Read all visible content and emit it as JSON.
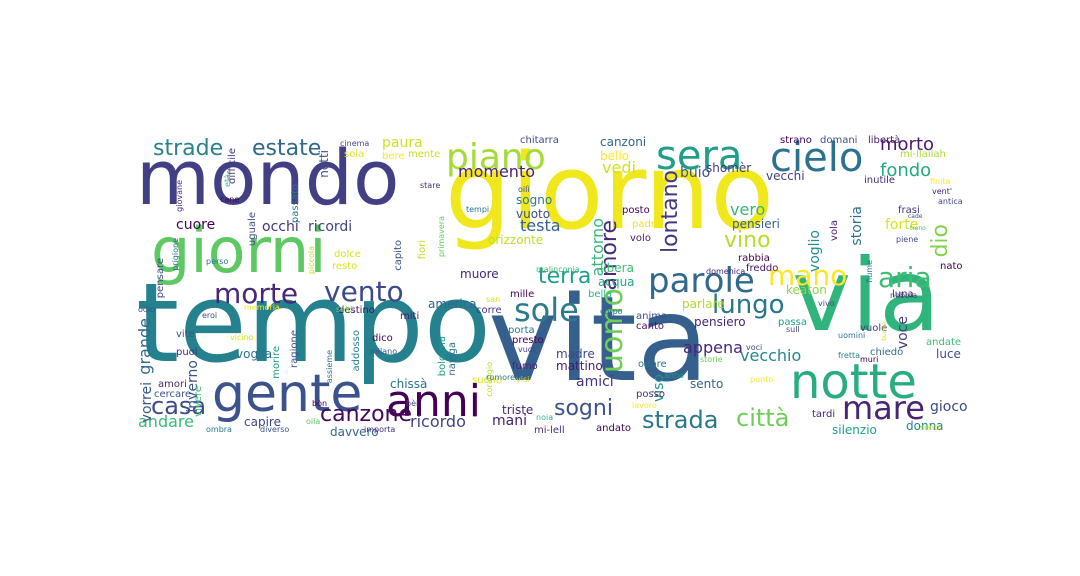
{
  "words": [
    {
      "text": "giorno",
      "color": "#f0e81c"
    },
    {
      "text": "tempo",
      "color": "#26818e"
    },
    {
      "text": "vita",
      "color": "#355f8d"
    },
    {
      "text": "via",
      "color": "#2fb47c"
    },
    {
      "text": "mondo",
      "color": "#423f85"
    },
    {
      "text": "giorni",
      "color": "#5ec962"
    },
    {
      "text": "notte",
      "color": "#27ad81"
    },
    {
      "text": "gente",
      "color": "#3b528b"
    },
    {
      "text": "anni",
      "color": "#440154"
    },
    {
      "text": "sera",
      "color": "#1f9e89"
    },
    {
      "text": "cielo",
      "color": "#2c728e"
    },
    {
      "text": "piano",
      "color": "#a5db36"
    },
    {
      "text": "parole",
      "color": "#31688e"
    },
    {
      "text": "mare",
      "color": "#482475"
    },
    {
      "text": "morte",
      "color": "#482878"
    },
    {
      "text": "vento",
      "color": "#3e4989"
    },
    {
      "text": "sole",
      "color": "#287c8e"
    },
    {
      "text": "uomo",
      "color": "#6ece58"
    },
    {
      "text": "mano",
      "color": "#fde725"
    },
    {
      "text": "aria",
      "color": "#3dbc74"
    },
    {
      "text": "lungo",
      "color": "#2a768e"
    },
    {
      "text": "strade",
      "color": "#26828e"
    },
    {
      "text": "estate",
      "color": "#30688e"
    },
    {
      "text": "casa",
      "color": "#3e4a89"
    },
    {
      "text": "canzone",
      "color": "#46085c"
    },
    {
      "text": "sogni",
      "color": "#3b528b"
    },
    {
      "text": "strada",
      "color": "#2a788e"
    },
    {
      "text": "città",
      "color": "#6ece58"
    },
    {
      "text": "amore",
      "color": "#472d7b"
    },
    {
      "text": "terra",
      "color": "#1f9e89"
    },
    {
      "text": "vino",
      "color": "#b5de2b"
    },
    {
      "text": "lontano",
      "color": "#453781"
    },
    {
      "text": "dio",
      "color": "#84d44b"
    },
    {
      "text": "morto",
      "color": "#481a6c"
    },
    {
      "text": "fondo",
      "color": "#22a884"
    },
    {
      "text": "grande",
      "color": "#31688e"
    },
    {
      "text": "cuore",
      "color": "#440154"
    },
    {
      "text": "occhi",
      "color": "#46337e"
    },
    {
      "text": "ricordi",
      "color": "#3f4788"
    },
    {
      "text": "momento",
      "color": "#482173"
    },
    {
      "text": "paura",
      "color": "#cde11d"
    },
    {
      "text": "vedi",
      "color": "#d2e21b"
    },
    {
      "text": "testa",
      "color": "#34618d"
    },
    {
      "text": "attorno",
      "color": "#35b779"
    },
    {
      "text": "vero",
      "color": "#35b779"
    },
    {
      "text": "storia",
      "color": "#2d708e"
    },
    {
      "text": "voglio",
      "color": "#20928c"
    },
    {
      "text": "forte",
      "color": "#dde318"
    },
    {
      "text": "andare",
      "color": "#3aba76"
    },
    {
      "text": "vorrei",
      "color": "#38588c"
    },
    {
      "text": "inverno",
      "color": "#3a548c"
    },
    {
      "text": "ricordo",
      "color": "#404387"
    },
    {
      "text": "mani",
      "color": "#481d6f"
    },
    {
      "text": "amici",
      "color": "#46337e"
    },
    {
      "text": "viso",
      "color": "#21918c"
    },
    {
      "text": "appena",
      "color": "#482677"
    },
    {
      "text": "vecchio",
      "color": "#24878e"
    },
    {
      "text": "voce",
      "color": "#443a83"
    },
    {
      "text": "gioco",
      "color": "#3e4989"
    },
    {
      "text": "canzoni",
      "color": "#31688e"
    },
    {
      "text": "bello",
      "color": "#fde725"
    },
    {
      "text": "buio",
      "color": "#3b528b"
    },
    {
      "text": "shomèr",
      "color": "#453882"
    },
    {
      "text": "vecchi",
      "color": "#433e85"
    },
    {
      "text": "domani",
      "color": "#3d4e8a"
    },
    {
      "text": "libertà",
      "color": "#481c6e"
    },
    {
      "text": "mi-llailah",
      "color": "#a8db34"
    },
    {
      "text": "notti",
      "color": "#3c508b"
    },
    {
      "text": "sola",
      "color": "#dfe318"
    },
    {
      "text": "bere",
      "color": "#fde725"
    },
    {
      "text": "mente",
      "color": "#c8e020"
    },
    {
      "text": "sogno",
      "color": "#2a788e"
    },
    {
      "text": "vuoto",
      "color": "#3c4f8a"
    },
    {
      "text": "orizzonte",
      "color": "#bddf26"
    },
    {
      "text": "rabbia",
      "color": "#440154"
    },
    {
      "text": "pensieri",
      "color": "#34608d"
    },
    {
      "text": "parlare",
      "color": "#addc30"
    },
    {
      "text": "keaton",
      "color": "#8ed645"
    },
    {
      "text": "pensiero",
      "color": "#482576"
    },
    {
      "text": "luce",
      "color": "#3d4e8a"
    },
    {
      "text": "madre",
      "color": "#3e4a89"
    },
    {
      "text": "mattino",
      "color": "#481b6d"
    },
    {
      "text": "chissà",
      "color": "#2c738e"
    },
    {
      "text": "triste",
      "color": "#482475"
    },
    {
      "text": "sento",
      "color": "#31668e"
    },
    {
      "text": "andato",
      "color": "#440154"
    },
    {
      "text": "mi-lell",
      "color": "#46307e"
    },
    {
      "text": "davvero",
      "color": "#31688e"
    },
    {
      "text": "silenzio",
      "color": "#20a386"
    },
    {
      "text": "donna",
      "color": "#24868e"
    },
    {
      "text": "capire",
      "color": "#404688"
    },
    {
      "text": "ragione",
      "color": "#37598c"
    },
    {
      "text": "voglia",
      "color": "#2e6f8e"
    },
    {
      "text": "puoi",
      "color": "#482979"
    },
    {
      "text": "vite",
      "color": "#3a538b"
    },
    {
      "text": "pensare",
      "color": "#3e4a89"
    },
    {
      "text": "uguale",
      "color": "#3d4d8a"
    },
    {
      "text": "difficile",
      "color": "#453781"
    },
    {
      "text": "passato",
      "color": "#2a778e"
    },
    {
      "text": "cercare",
      "color": "#3b528b"
    },
    {
      "text": "amori",
      "color": "#482878"
    },
    {
      "text": "morire",
      "color": "#1f9e89"
    },
    {
      "text": "addosso",
      "color": "#25848e"
    },
    {
      "text": "fumo",
      "color": "#482475"
    },
    {
      "text": "presto",
      "color": "#440154"
    },
    {
      "text": "porta",
      "color": "#2d718e"
    },
    {
      "text": "naviga",
      "color": "#2c728e"
    },
    {
      "text": "america",
      "color": "#32658e"
    },
    {
      "text": "acqua",
      "color": "#22a785"
    },
    {
      "text": "libera",
      "color": "#3dbc74"
    },
    {
      "text": "muore",
      "color": "#482677"
    },
    {
      "text": "mille",
      "color": "#440154"
    },
    {
      "text": "bella",
      "color": "#2fb47c"
    },
    {
      "text": "anima",
      "color": "#3b518b"
    },
    {
      "text": "canto",
      "color": "#471063"
    },
    {
      "text": "corre",
      "color": "#453781"
    },
    {
      "text": "suono",
      "color": "#dfe318"
    },
    {
      "text": "posso",
      "color": "#472f7d"
    },
    {
      "text": "odore",
      "color": "#2a788e"
    },
    {
      "text": "miti",
      "color": "#481668"
    },
    {
      "text": "dico",
      "color": "#440154"
    },
    {
      "text": "resto",
      "color": "#dde318"
    },
    {
      "text": "dolce",
      "color": "#d8e219"
    },
    {
      "text": "capito",
      "color": "#3a548c"
    },
    {
      "text": "fiori",
      "color": "#bddf26"
    },
    {
      "text": "destino",
      "color": "#470e61"
    },
    {
      "text": "vivere",
      "color": "#3dbc74"
    },
    {
      "text": "soldi",
      "color": "#7ad151"
    },
    {
      "text": "bologna",
      "color": "#1f9a8a"
    },
    {
      "text": "assieme",
      "color": "#2d708e"
    },
    {
      "text": "milano",
      "color": "#3b528b"
    },
    {
      "text": "chitarra",
      "color": "#3e4989"
    },
    {
      "text": "strano",
      "color": "#440154"
    },
    {
      "text": "inutile",
      "color": "#472c7a"
    },
    {
      "text": "finita",
      "color": "#fde725"
    },
    {
      "text": "frasi",
      "color": "#453781"
    },
    {
      "text": "vola",
      "color": "#482374"
    },
    {
      "text": "piene",
      "color": "#3e4a89"
    },
    {
      "text": "nato",
      "color": "#440154"
    },
    {
      "text": "luna",
      "color": "#481467"
    },
    {
      "text": "passa",
      "color": "#1fa287"
    },
    {
      "text": "vuole",
      "color": "#443983"
    },
    {
      "text": "uomini",
      "color": "#2a788e"
    },
    {
      "text": "andate",
      "color": "#3dbc74"
    },
    {
      "text": "chiedo",
      "color": "#2d708e"
    },
    {
      "text": "voci",
      "color": "#3c4f8a"
    },
    {
      "text": "storie",
      "color": "#6ccd5a"
    },
    {
      "text": "anno",
      "color": "#1f9e89"
    },
    {
      "text": "tardi",
      "color": "#482475"
    },
    {
      "text": "senti",
      "color": "#bddf26"
    },
    {
      "text": "freddo",
      "color": "#471164"
    },
    {
      "text": "posto",
      "color": "#440154"
    },
    {
      "text": "padre",
      "color": "#f1e51d"
    },
    {
      "text": "volo",
      "color": "#481a6c"
    },
    {
      "text": "cinema",
      "color": "#3e4a89"
    },
    {
      "text": "età",
      "color": "#3dbc74"
    },
    {
      "text": "cane",
      "color": "#440154"
    },
    {
      "text": "giovane",
      "color": "#472c7a"
    },
    {
      "text": "prigione",
      "color": "#2c728e"
    },
    {
      "text": "odio",
      "color": "#39568c"
    },
    {
      "text": "eroi",
      "color": "#3b528b"
    },
    {
      "text": "perso",
      "color": "#2a788e"
    },
    {
      "text": "memoria",
      "color": "#fde725"
    },
    {
      "text": "vicino",
      "color": "#d8e219"
    },
    {
      "text": "ombra",
      "color": "#2a768e"
    },
    {
      "text": "diverso",
      "color": "#3b528b"
    },
    {
      "text": "importa",
      "color": "#482878"
    },
    {
      "text": "bòn",
      "color": "#440154"
    },
    {
      "text": "bèi",
      "color": "#3e4989"
    },
    {
      "text": "oila",
      "color": "#5ec962"
    },
    {
      "text": "coraggio",
      "color": "#b5de2b"
    },
    {
      "text": "rumore",
      "color": "#2a788e"
    },
    {
      "text": "visi",
      "color": "#d8e219"
    },
    {
      "text": "noia",
      "color": "#2fb47c"
    },
    {
      "text": "lavoro",
      "color": "#fde725"
    },
    {
      "text": "stare",
      "color": "#472c7a"
    },
    {
      "text": "tempi",
      "color": "#2c728e"
    },
    {
      "text": "oilì",
      "color": "#3b528b"
    },
    {
      "text": "primavera",
      "color": "#5ec962"
    },
    {
      "text": "piccola",
      "color": "#bddf26"
    },
    {
      "text": "malinconia",
      "color": "#3dbc74"
    },
    {
      "text": "san",
      "color": "#d8e219"
    },
    {
      "text": "vuoi",
      "color": "#404387"
    },
    {
      "text": "corpo",
      "color": "#2d708e"
    },
    {
      "text": "domenica",
      "color": "#482475"
    },
    {
      "text": "vivo",
      "color": "#3e4a89"
    },
    {
      "text": "sull",
      "color": "#404688"
    },
    {
      "text": "punto",
      "color": "#fde725"
    },
    {
      "text": "fretta",
      "color": "#26828e"
    },
    {
      "text": "muri",
      "color": "#440154"
    },
    {
      "text": "buona",
      "color": "#d8e219"
    },
    {
      "text": "nebbia",
      "color": "#3e4a89"
    },
    {
      "text": "fiume",
      "color": "#2a788e"
    },
    {
      "text": "cade",
      "color": "#3b528b"
    },
    {
      "text": "treno",
      "color": "#3dbc74"
    },
    {
      "text": "antica",
      "color": "#404688"
    },
    {
      "text": "vent'",
      "color": "#482475"
    }
  ]
}
